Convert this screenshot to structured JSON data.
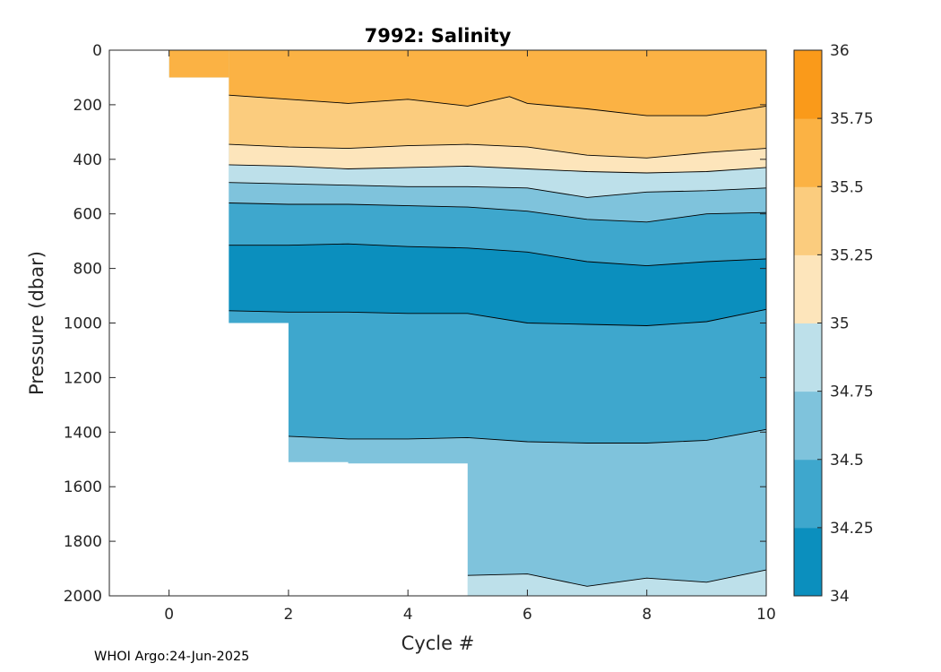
{
  "chart_data": {
    "type": "contour",
    "title": "7992:  Salinity",
    "xlabel": "Cycle #",
    "ylabel": "Pressure (dbar)",
    "xlim": [
      -1,
      10
    ],
    "ylim": [
      2000,
      0
    ],
    "y_reversed": true,
    "xticks": [
      0,
      2,
      4,
      6,
      8,
      10
    ],
    "yticks": [
      0,
      200,
      400,
      600,
      800,
      1000,
      1200,
      1400,
      1600,
      1800,
      2000
    ],
    "colorbar": {
      "levels": [
        34,
        34.25,
        34.5,
        34.75,
        35,
        35.25,
        35.5,
        35.75,
        36
      ],
      "tick_labels": [
        "34",
        "34.25",
        "34.5",
        "34.75",
        "35",
        "35.25",
        "35.5",
        "35.75",
        "36"
      ],
      "colors": [
        "#0b8fbe",
        "#3ea7cd",
        "#7fc3dc",
        "#bde0ea",
        "#fde5bb",
        "#fbcc7e",
        "#fbb244",
        "#fa9a1a"
      ]
    },
    "cycles": [
      0,
      1,
      2,
      3,
      4,
      5,
      6,
      7,
      8,
      9,
      10
    ],
    "profile_max_depth": [
      100,
      1000,
      1510,
      1515,
      1515,
      2000,
      2000,
      2000,
      2000,
      2000,
      2000
    ],
    "contours": [
      {
        "level": 35.5,
        "x": [
          1,
          2,
          3,
          4,
          5,
          5.7,
          6,
          7,
          8,
          9,
          10
        ],
        "y": [
          165,
          180,
          195,
          180,
          205,
          170,
          195,
          215,
          240,
          240,
          205
        ]
      },
      {
        "level": 35.25,
        "x": [
          1,
          2,
          3,
          4,
          5,
          6,
          7,
          8,
          9,
          10
        ],
        "y": [
          345,
          355,
          360,
          350,
          345,
          355,
          385,
          395,
          375,
          360
        ]
      },
      {
        "level": 35,
        "x": [
          1,
          2,
          3,
          4,
          5,
          6,
          7,
          8,
          9,
          10
        ],
        "y": [
          420,
          425,
          435,
          430,
          425,
          435,
          445,
          450,
          445,
          430
        ]
      },
      {
        "level": 34.75,
        "x": [
          1,
          2,
          3,
          4,
          5,
          6,
          7,
          8,
          9,
          10
        ],
        "y": [
          485,
          490,
          495,
          500,
          500,
          505,
          540,
          520,
          515,
          505
        ]
      },
      {
        "level": 34.5,
        "x": [
          1,
          2,
          3,
          4,
          5,
          6,
          7,
          8,
          9,
          10
        ],
        "y": [
          560,
          565,
          565,
          570,
          575,
          590,
          620,
          630,
          600,
          595
        ]
      },
      {
        "level": 34.25,
        "x": [
          1,
          2,
          3,
          4,
          5,
          6,
          7,
          8,
          9,
          10
        ],
        "y": [
          715,
          715,
          710,
          720,
          725,
          740,
          775,
          790,
          775,
          765
        ]
      },
      {
        "level": 34.25,
        "x": [
          1,
          2,
          3,
          4,
          5,
          6,
          7,
          8,
          9,
          10
        ],
        "y": [
          955,
          960,
          960,
          965,
          965,
          1000,
          1005,
          1010,
          995,
          950
        ]
      },
      {
        "level": 34.5,
        "x": [
          2,
          3,
          4,
          5,
          6,
          7,
          8,
          9,
          10
        ],
        "y": [
          1415,
          1425,
          1425,
          1420,
          1435,
          1440,
          1440,
          1430,
          1390
        ]
      },
      {
        "level": 34.75,
        "x": [
          5,
          6,
          7,
          8,
          9,
          10
        ],
        "y": [
          1925,
          1920,
          1965,
          1935,
          1950,
          1905
        ]
      }
    ]
  },
  "credit": "WHOI Argo:24-Jun-2025"
}
